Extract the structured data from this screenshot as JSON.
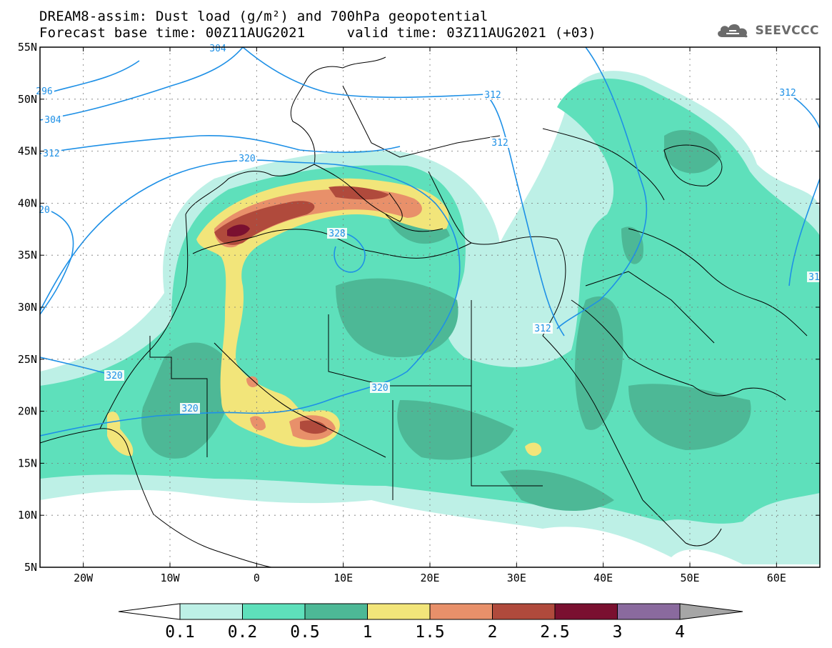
{
  "title": {
    "line1": "DREAM8-assim: Dust load (g/m²) and 700hPa geopotential",
    "line2": "Forecast base time: 00Z11AUG2021     valid time: 03Z11AUG2021 (+03)"
  },
  "logo": {
    "icon": "cloud-icon",
    "text": "SEEVCCC"
  },
  "axes": {
    "lat_labels": [
      "55N",
      "50N",
      "45N",
      "40N",
      "35N",
      "30N",
      "25N",
      "20N",
      "15N",
      "10N",
      "5N"
    ],
    "lon_labels": [
      "20W",
      "10W",
      "0",
      "10E",
      "20E",
      "30E",
      "40E",
      "50E",
      "60E"
    ],
    "lon_range": [
      -25,
      65
    ],
    "lat_range": [
      5,
      55
    ]
  },
  "colorbar": {
    "labels": [
      "0.1",
      "0.2",
      "0.5",
      "1",
      "1.5",
      "2",
      "2.5",
      "3",
      "4"
    ],
    "colors": [
      "#bdf0e6",
      "#5ee0bb",
      "#4db896",
      "#f2e57a",
      "#e8906a",
      "#b04a3c",
      "#7a1030",
      "#8a6a9e",
      "#a6a6a6"
    ],
    "under_color": "#ffffff"
  },
  "contours": {
    "color": "#1e90e6",
    "labels": [
      "304",
      "312",
      "296",
      "304",
      "312",
      "320",
      "20",
      "328",
      "320",
      "320",
      "320",
      "312",
      "312",
      "31",
      "312"
    ]
  },
  "colors": {
    "coast": "#000000",
    "grid": "#777777"
  }
}
